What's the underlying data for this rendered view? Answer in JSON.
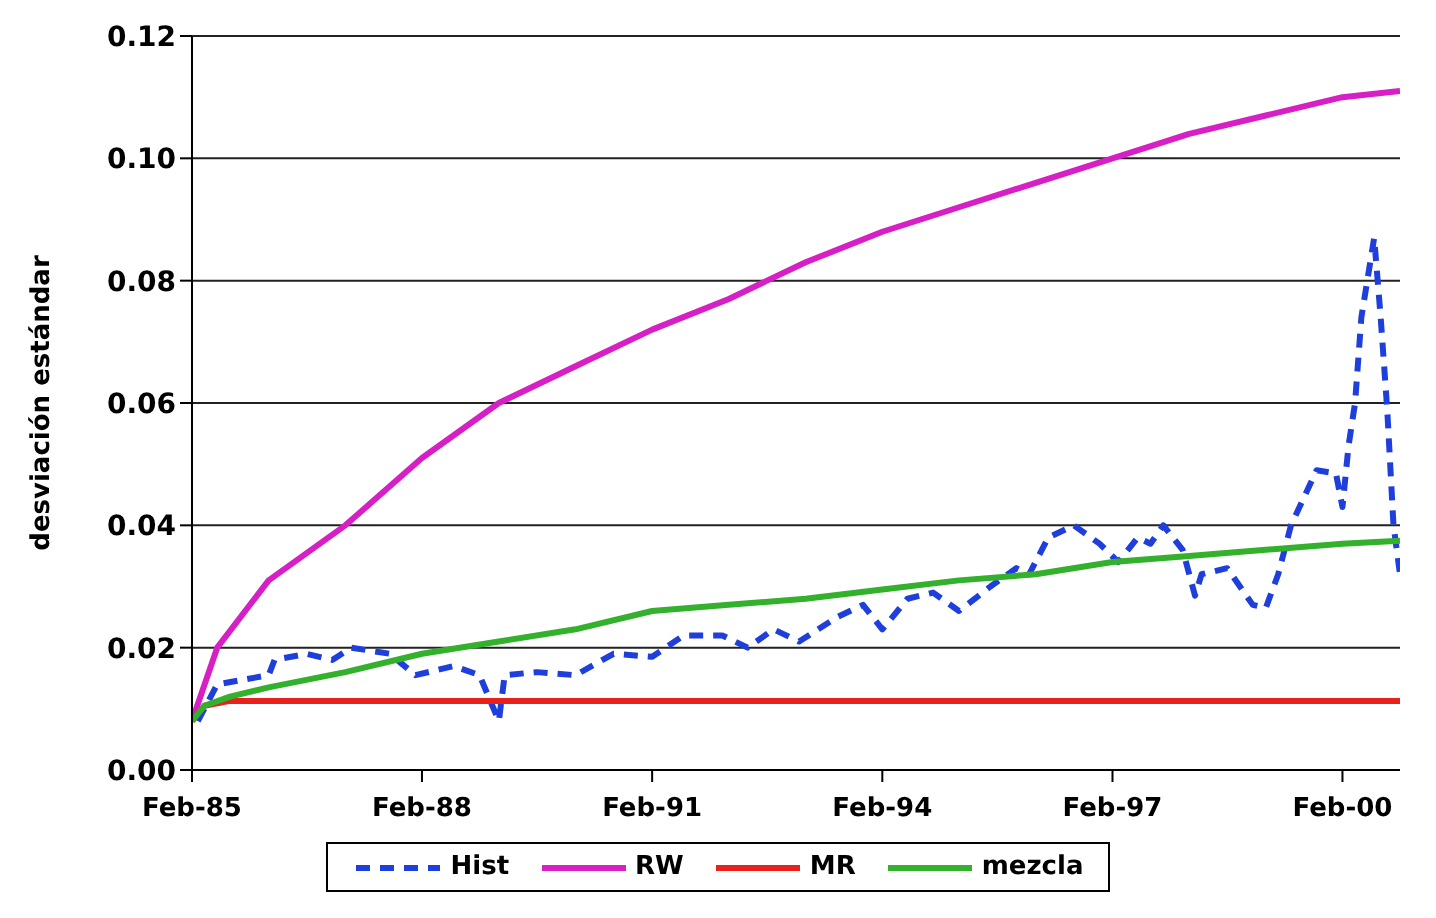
{
  "chart_data": {
    "type": "line",
    "ylabel": "desviación estándar",
    "xlim": [
      "1985-02",
      "2000-11"
    ],
    "xticks": [
      {
        "value": "1985-02",
        "label": "Feb-85"
      },
      {
        "value": "1988-02",
        "label": "Feb-88"
      },
      {
        "value": "1991-02",
        "label": "Feb-91"
      },
      {
        "value": "1994-02",
        "label": "Feb-94"
      },
      {
        "value": "1997-02",
        "label": "Feb-97"
      },
      {
        "value": "2000-02",
        "label": "Feb-00"
      }
    ],
    "ylim": [
      0,
      0.12
    ],
    "yticks": [
      {
        "value": 0,
        "label": "0.00"
      },
      {
        "value": 0.02,
        "label": "0.02"
      },
      {
        "value": 0.04,
        "label": "0.04"
      },
      {
        "value": 0.06,
        "label": "0.06"
      },
      {
        "value": 0.08,
        "label": "0.08"
      },
      {
        "value": 0.1,
        "label": "0.10"
      },
      {
        "value": 0.12,
        "label": "0.12"
      }
    ],
    "grid": "y",
    "legend": "bottom",
    "series": [
      {
        "name": "Hist",
        "color": "#1f3fdc",
        "line_style": "dashed",
        "x": [
          "1985-03",
          "1985-06",
          "1986-02",
          "1986-03",
          "1986-08",
          "1986-12",
          "1987-03",
          "1987-09",
          "1988-01",
          "1988-07",
          "1988-11",
          "1989-02",
          "1989-03",
          "1989-08",
          "1990-02",
          "1990-08",
          "1991-02",
          "1991-07",
          "1992-01",
          "1992-05",
          "1992-09",
          "1993-01",
          "1993-07",
          "1993-11",
          "1994-02",
          "1994-06",
          "1994-10",
          "1995-02",
          "1995-07",
          "1995-11",
          "1996-01",
          "1996-04",
          "1996-08",
          "1996-12",
          "1997-03",
          "1997-06",
          "1997-08",
          "1997-10",
          "1998-01",
          "1998-03",
          "1998-04",
          "1998-08",
          "1998-12",
          "1999-02",
          "1999-04",
          "1999-06",
          "1999-10",
          "2000-01",
          "2000-02",
          "2000-03",
          "2000-04",
          "2000-05",
          "2000-07",
          "2000-08",
          "2000-09",
          "2000-10",
          "2000-11"
        ],
        "values": [
          0.008,
          0.014,
          0.0155,
          0.018,
          0.019,
          0.018,
          0.02,
          0.019,
          0.0155,
          0.017,
          0.0155,
          0.008,
          0.0155,
          0.016,
          0.0155,
          0.019,
          0.0185,
          0.022,
          0.022,
          0.02,
          0.023,
          0.021,
          0.025,
          0.027,
          0.023,
          0.028,
          0.029,
          0.026,
          0.03,
          0.033,
          0.032,
          0.038,
          0.04,
          0.037,
          0.034,
          0.038,
          0.037,
          0.04,
          0.036,
          0.0285,
          0.032,
          0.033,
          0.027,
          0.0265,
          0.032,
          0.04,
          0.049,
          0.0485,
          0.043,
          0.053,
          0.06,
          0.074,
          0.087,
          0.074,
          0.059,
          0.04,
          0.032
        ]
      },
      {
        "name": "RW",
        "color": "#d61fc4",
        "x": [
          "1985-02",
          "1985-06",
          "1986-02",
          "1987-02",
          "1988-02",
          "1989-02",
          "1990-02",
          "1991-02",
          "1992-02",
          "1992-08",
          "1993-02",
          "1994-02",
          "1995-02",
          "1996-02",
          "1997-02",
          "1998-02",
          "1999-02",
          "2000-02",
          "2000-11"
        ],
        "values": [
          0.008,
          0.02,
          0.031,
          0.04,
          0.051,
          0.06,
          0.066,
          0.072,
          0.077,
          0.08,
          0.083,
          0.088,
          0.092,
          0.096,
          0.1,
          0.104,
          0.107,
          0.11,
          0.111
        ]
      },
      {
        "name": "MR",
        "color": "#e8211c",
        "x": [
          "1985-02",
          "1985-04",
          "1985-08",
          "1986-02",
          "2000-11"
        ],
        "values": [
          0.008,
          0.0105,
          0.0113,
          0.0113,
          0.0113
        ]
      },
      {
        "name": "mezcla",
        "color": "#33b02c",
        "x": [
          "1985-02",
          "1985-04",
          "1985-08",
          "1986-02",
          "1987-02",
          "1988-02",
          "1989-02",
          "1990-02",
          "1991-02",
          "1992-02",
          "1993-02",
          "1994-02",
          "1995-02",
          "1996-02",
          "1997-02",
          "1998-02",
          "1999-02",
          "2000-02",
          "2000-11"
        ],
        "values": [
          0.008,
          0.0105,
          0.012,
          0.0135,
          0.016,
          0.019,
          0.021,
          0.023,
          0.026,
          0.027,
          0.028,
          0.0295,
          0.031,
          0.032,
          0.034,
          0.035,
          0.036,
          0.037,
          0.0375
        ]
      }
    ]
  }
}
